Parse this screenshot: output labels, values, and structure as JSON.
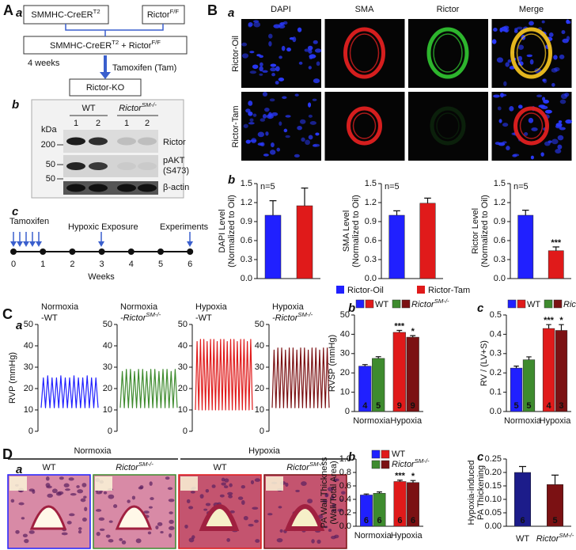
{
  "panel_letters": [
    "A",
    "B",
    "C",
    "D"
  ],
  "panel_a": {
    "sublabels": [
      "a",
      "b",
      "c"
    ],
    "box_left": {
      "base": "SMMHC-CreER",
      "sup": "T2"
    },
    "box_right": {
      "base": "Rictor",
      "sup": "F/F"
    },
    "box_combined": {
      "base1": "SMMHC-CreER",
      "sup1": "T2",
      "base2": " + Rictor",
      "sup2": "F/F"
    },
    "duration": "4 weeks",
    "treatment": "Tamoxifen (Tam)",
    "result": "Rictor-KO",
    "blot": {
      "groups": [
        "WT",
        {
          "base": "Rictor",
          "sup": "SM-/-"
        }
      ],
      "lanes": [
        "1",
        "2",
        "1",
        "2"
      ],
      "unit": "kDa",
      "markers": [
        "200",
        "50",
        "50"
      ],
      "bands": [
        "Rictor",
        "pAKT",
        "(S473)",
        "β-actin"
      ]
    },
    "timeline": {
      "ticks": [
        "0",
        "1",
        "2",
        "3",
        "4",
        "5",
        "6"
      ],
      "xlabel": "Weeks",
      "events": [
        "Tamoxifen",
        "Hypoxic Exposure",
        "Experiments"
      ]
    }
  },
  "panel_b": {
    "sublabels": [
      "a",
      "b"
    ],
    "channels": [
      "DAPI",
      "SMA",
      "Rictor",
      "Merge"
    ],
    "channel_colors": [
      "#2020ff",
      "#e01a1a",
      "#2e9a2e",
      "#e0a020"
    ],
    "rows": [
      "Rictor-Oil",
      "Rictor-Tam"
    ],
    "legend": [
      {
        "name": "Rictor-Oil",
        "color": "#2020ff"
      },
      {
        "name": "Rictor-Tam",
        "color": "#e01a1a"
      }
    ]
  },
  "panel_c": {
    "sublabels": [
      "a",
      "b",
      "c"
    ]
  },
  "panel_d": {
    "sublabels": [
      "a",
      "b",
      "c"
    ],
    "groups": [
      "Normoxia",
      "Hypoxia"
    ],
    "group_colors": [
      "#2020ff",
      "#e01a1a"
    ],
    "image_labels": [
      "WT",
      {
        "base": "Rictor",
        "sup": "SM-/-"
      },
      "WT",
      {
        "base": "Rictor",
        "sup": "SM-/-"
      }
    ]
  },
  "chart_data": [
    {
      "type": "bar",
      "ylabel": [
        "DAPI  Level",
        "(Normalized to Oil)"
      ],
      "annotation": "n=5",
      "values": [
        1.0,
        1.15
      ],
      "errors": [
        0.23,
        0.28
      ],
      "significance": [
        null,
        null
      ],
      "colors": [
        "#2020ff",
        "#e01a1a"
      ],
      "ylim": [
        0,
        1.5
      ],
      "yticks": [
        {
          "value": 0,
          "label": "0.0"
        },
        0.3,
        0.6,
        0.9,
        1.2,
        1.5
      ]
    },
    {
      "type": "bar",
      "ylabel": [
        "SMA Level",
        "(Normalized to Oil)"
      ],
      "annotation": "n=5",
      "values": [
        1.0,
        1.19
      ],
      "errors": [
        0.07,
        0.08
      ],
      "significance": [
        null,
        null
      ],
      "colors": [
        "#2020ff",
        "#e01a1a"
      ],
      "ylim": [
        0,
        1.5
      ],
      "yticks": [
        {
          "value": 0,
          "label": "0.0"
        },
        0.3,
        0.6,
        0.9,
        1.2,
        1.5
      ]
    },
    {
      "type": "bar",
      "ylabel": [
        "Rictor Level",
        "(Normalized to Oil)"
      ],
      "annotation": "n=5",
      "values": [
        1.0,
        0.44
      ],
      "errors": [
        0.08,
        0.06
      ],
      "significance": [
        null,
        "***"
      ],
      "colors": [
        "#2020ff",
        "#e01a1a"
      ],
      "ylim": [
        0,
        1.5
      ],
      "yticks": [
        {
          "value": 0,
          "label": "0.0"
        },
        0.3,
        0.6,
        0.9,
        1.2,
        1.5
      ]
    },
    {
      "type": "line",
      "title": [
        "Normoxia",
        "-WT"
      ],
      "color": "#2020ff",
      "ylabel": [
        "RVP (mmHg)"
      ],
      "ylim": [
        0,
        50
      ],
      "yticks": [
        0,
        10,
        20,
        30,
        40,
        50
      ],
      "values": [
        11,
        25,
        11,
        26,
        11,
        25,
        11,
        25,
        11,
        26,
        11,
        25,
        11,
        25,
        11,
        26,
        11,
        25,
        11,
        25,
        11,
        26,
        11,
        25,
        11,
        25,
        11
      ]
    },
    {
      "type": "line",
      "title": [
        "Normoxia",
        {
          "base": "-Rictor",
          "sup": "SM-/-"
        }
      ],
      "color": "#3e8b2e",
      "ylim": [
        0,
        50
      ],
      "yticks": [
        0,
        10,
        20,
        30,
        40,
        50
      ],
      "values": [
        11,
        28,
        11,
        29,
        11,
        29,
        11,
        28,
        11,
        29,
        11,
        29,
        11,
        28,
        11,
        29,
        11,
        29,
        11,
        28,
        11,
        29,
        11,
        29,
        11,
        28,
        11,
        29,
        11
      ]
    },
    {
      "type": "line",
      "title": [
        "Hypoxia",
        "-WT"
      ],
      "color": "#e01a1a",
      "ylim": [
        0,
        50
      ],
      "yticks": [
        0,
        10,
        20,
        30,
        40,
        50
      ],
      "values": [
        10,
        42,
        10,
        43,
        10,
        43,
        10,
        42,
        10,
        43,
        10,
        43,
        10,
        42,
        10,
        43,
        10,
        43,
        10,
        42,
        10,
        43,
        10,
        43,
        10,
        42,
        10,
        43,
        10,
        43,
        10,
        42,
        10,
        43,
        10
      ]
    },
    {
      "type": "line",
      "title": [
        "Hypoxia",
        {
          "base": "-Rictor",
          "sup": "SM-/-"
        }
      ],
      "color": "#7b1113",
      "ylim": [
        0,
        50
      ],
      "yticks": [
        0,
        10,
        20,
        30,
        40,
        50
      ],
      "values": [
        11,
        38,
        11,
        39,
        11,
        39,
        11,
        38,
        11,
        39,
        11,
        39,
        11,
        38,
        11,
        39,
        11,
        39,
        11,
        38,
        11,
        39,
        11,
        39,
        11,
        38,
        11,
        39,
        11,
        39,
        11
      ]
    },
    {
      "type": "grouped_bar",
      "ylabel": [
        "RVSP (mmHg)"
      ],
      "legend_layout": "row",
      "categories": [
        "Normoxia",
        "Hypoxia"
      ],
      "category_colors": [
        "#2020ff",
        "#e01a1a"
      ],
      "ylim": [
        0,
        50
      ],
      "yticks": [
        0,
        10,
        20,
        30,
        40,
        50
      ],
      "series": [
        {
          "name": "WT",
          "colors": [
            "#2020ff",
            "#e01a1a"
          ],
          "values": [
            23.5,
            41
          ],
          "errors": [
            0.8,
            1.0
          ],
          "n": [
            4,
            9
          ],
          "significance": [
            null,
            "***"
          ]
        },
        {
          "name": {
            "base": "Rictor",
            "sup": "SM-/-"
          },
          "colors": [
            "#3e8b2e",
            "#7b1113"
          ],
          "values": [
            27.5,
            38.5
          ],
          "errors": [
            0.9,
            0.8
          ],
          "n": [
            5,
            9
          ],
          "significance": [
            null,
            "*"
          ]
        }
      ]
    },
    {
      "type": "grouped_bar",
      "ylabel": [
        "RV / (LV+S)"
      ],
      "legend_layout": "row",
      "categories": [
        "Normoxia",
        "Hypoxia"
      ],
      "category_colors": [
        "#2020ff",
        "#e01a1a"
      ],
      "ylim": [
        0,
        0.5
      ],
      "yticks": [
        {
          "value": 0,
          "label": "0.0"
        },
        0.1,
        0.2,
        0.3,
        0.4,
        0.5
      ],
      "series": [
        {
          "name": "WT",
          "colors": [
            "#2020ff",
            "#e01a1a"
          ],
          "values": [
            0.225,
            0.43
          ],
          "errors": [
            0.01,
            0.02
          ],
          "n": [
            5,
            4
          ],
          "significance": [
            null,
            "***"
          ]
        },
        {
          "name": {
            "base": "Rictor",
            "sup": "SM-/-"
          },
          "colors": [
            "#3e8b2e",
            "#7b1113"
          ],
          "values": [
            0.268,
            0.42
          ],
          "errors": [
            0.015,
            0.03
          ],
          "n": [
            5,
            3
          ],
          "significance": [
            null,
            "*"
          ]
        }
      ]
    },
    {
      "type": "grouped_bar",
      "ylabel": [
        "PA Wall Thickness",
        "(Wall/Total Area)"
      ],
      "legend_layout": "column",
      "categories": [
        "Normoxia",
        "Hypoxia"
      ],
      "category_colors": [
        "#2020ff",
        "#e01a1a"
      ],
      "ylim": [
        0,
        1.0
      ],
      "yticks": [
        {
          "value": 0,
          "label": "0.0"
        },
        0.2,
        0.4,
        0.6,
        0.8,
        {
          "value": 1,
          "label": "1.0"
        }
      ],
      "series": [
        {
          "name": "WT",
          "colors": [
            "#2020ff",
            "#e01a1a"
          ],
          "values": [
            0.465,
            0.665
          ],
          "errors": [
            0.015,
            0.02
          ],
          "n": [
            6,
            6
          ],
          "significance": [
            null,
            "***"
          ]
        },
        {
          "name": {
            "base": "Rictor",
            "sup": "SM-/-"
          },
          "colors": [
            "#3e8b2e",
            "#7b1113"
          ],
          "values": [
            0.49,
            0.65
          ],
          "errors": [
            0.02,
            0.03
          ],
          "n": [
            6,
            6
          ],
          "significance": [
            null,
            "*"
          ]
        }
      ]
    },
    {
      "type": "bar",
      "ylabel": [
        "Hypoxia-induced",
        "PA Thickening"
      ],
      "categories": [
        "WT",
        {
          "base": "Rictor",
          "sup": "SM-/-"
        }
      ],
      "values": [
        0.2,
        0.155
      ],
      "errors": [
        0.022,
        0.035
      ],
      "n": [
        6,
        5
      ],
      "colors": [
        "#1c1c8a",
        "#7b1113"
      ],
      "ylim": [
        0,
        0.25
      ],
      "yticks": [
        {
          "value": 0,
          "label": "0.00"
        },
        0.05,
        {
          "value": 0.1,
          "label": "0.10"
        },
        0.15,
        {
          "value": 0.2,
          "label": "0.20"
        },
        0.25
      ]
    }
  ]
}
